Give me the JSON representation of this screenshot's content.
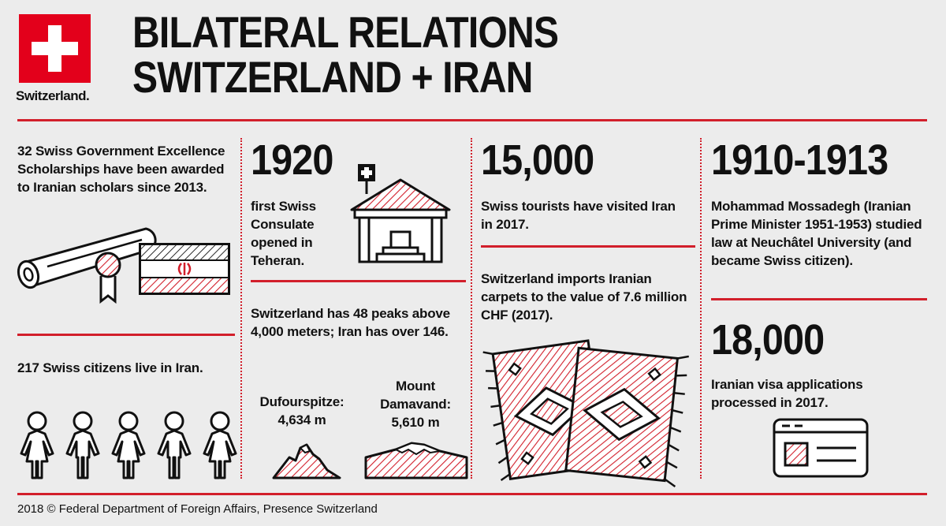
{
  "header": {
    "logo_text": "Switzerland.",
    "title_line1": "BILATERAL RELATIONS",
    "title_line2": "SWITZERLAND + IRAN"
  },
  "col1": {
    "scholarships": "32 Swiss Government Excellence Scholarships have been awarded to Iranian scholars since 2013.",
    "citizens": "217 Swiss citizens live in Iran.",
    "people_count": 5
  },
  "col2": {
    "year": "1920",
    "consulate": "first Swiss Consulate opened in Teheran.",
    "peaks": "Switzerland has 48 peaks above 4,000 meters; Iran has over 146.",
    "peak1_name": "Dufourspitze:",
    "peak1_height": "4,634 m",
    "peak2_name_line1": "Mount",
    "peak2_name_line2": "Damavand:",
    "peak2_height": "5,610 m"
  },
  "col3": {
    "tourists_number": "15,000",
    "tourists_text": "Swiss tourists have visited Iran in 2017.",
    "carpets_text": "Switzerland imports Iranian carpets to the value of 7.6 million CHF (2017)."
  },
  "col4": {
    "years": "1910-1913",
    "mossadegh": "Mohammad Mossadegh (Iranian Prime Minister 1951-1953) studied law at Neuchâtel University (and became Swiss citizen).",
    "visa_number": "18,000",
    "visa_text": "Iranian visa applications processed in 2017."
  },
  "footer": {
    "text": "2018 © Federal Department of Foreign Affairs, Presence Switzerland"
  },
  "colors": {
    "accent": "#d21f2b",
    "flag_red": "#e3001b",
    "background": "#ececec"
  },
  "icons": [
    "swiss-cross-icon",
    "diploma-scroll-icon",
    "iran-flag-icon",
    "person-icon",
    "consulate-building-icon",
    "mountain-icon",
    "carpet-icon",
    "visa-document-icon"
  ]
}
